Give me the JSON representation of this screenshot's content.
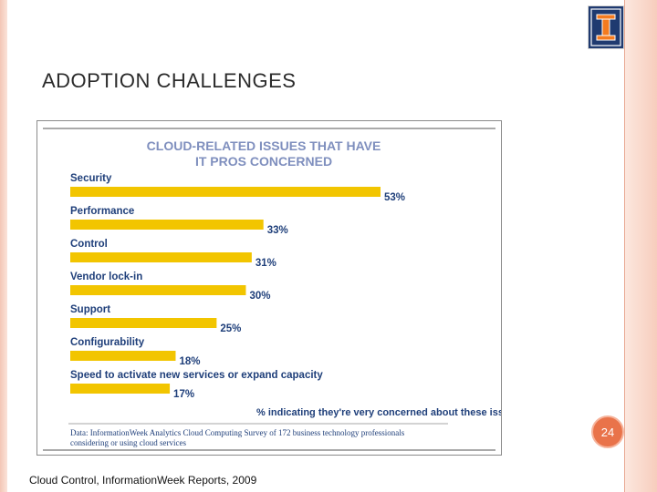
{
  "slide": {
    "title": "ADOPTION CHALLENGES",
    "page_number": "24",
    "caption": "Cloud Control, Information​Week Reports, 2009",
    "logo_letter": "I",
    "colors": {
      "logo_bg": "#1f3a70",
      "logo_fg": "#f47b20",
      "badge": "#e9734a",
      "bar": "#f2c500",
      "label": "#1f3f7a"
    }
  },
  "chart_data": {
    "type": "bar",
    "orientation": "horizontal",
    "title_lines": [
      "CLOUD-RELATED ISSUES THAT HAVE",
      "IT PROS CONCERNED"
    ],
    "categories": [
      "Security",
      "Performance",
      "Control",
      "Vendor lock-in",
      "Support",
      "Configurability",
      "Speed to activate new services or expand capacity"
    ],
    "values": [
      53,
      33,
      31,
      30,
      25,
      18,
      17
    ],
    "value_labels": [
      "53%",
      "33%",
      "31%",
      "30%",
      "25%",
      "18%",
      "17%"
    ],
    "xlabel": "% indicating they're very concerned about these issues",
    "xlim": [
      0,
      53
    ],
    "source_lines": [
      "Data: InformationWeek Analytics Cloud Computing Survey of 172 business technology professionals",
      "considering or using cloud services"
    ]
  }
}
